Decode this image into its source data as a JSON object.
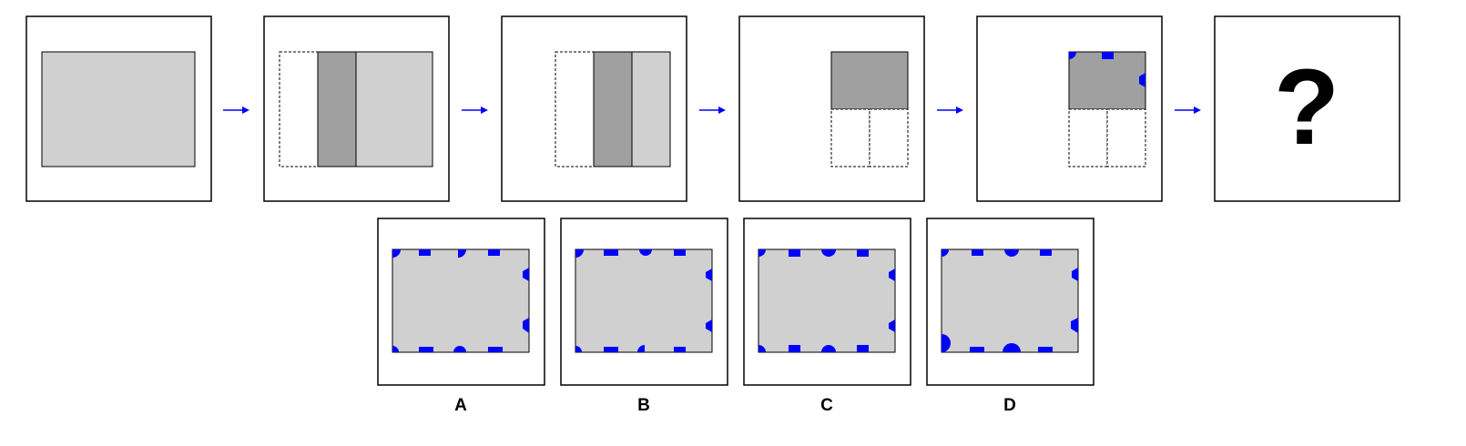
{
  "colors": {
    "frame": "#000000",
    "paper": "#d0d0d0",
    "folded": "#a0a0a0",
    "arrow": "#0000ff",
    "hole": "#0000ff"
  },
  "question": {
    "mark": "?"
  },
  "options": [
    {
      "label": "A"
    },
    {
      "label": "B"
    },
    {
      "label": "C"
    },
    {
      "label": "D"
    }
  ]
}
